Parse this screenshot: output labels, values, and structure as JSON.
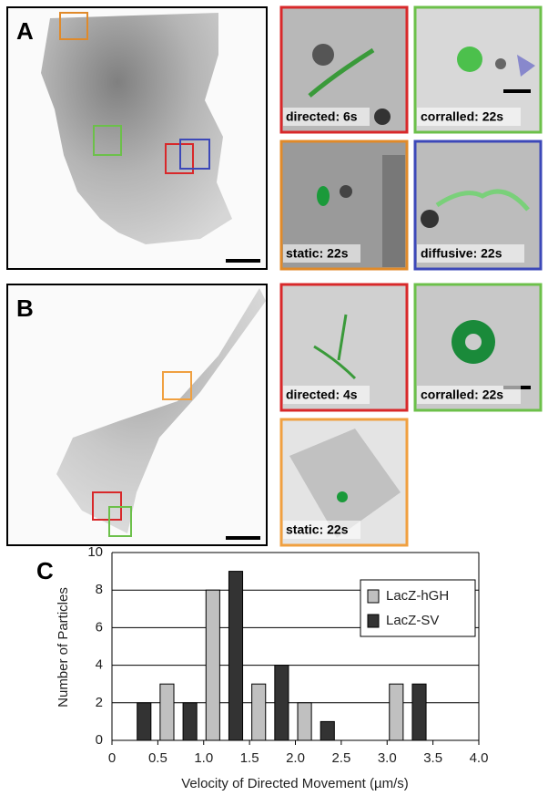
{
  "panels": [
    {
      "label": "A",
      "insets": [
        "directed: 6s",
        "corralled: 22s",
        "static: 22s",
        "diffusive: 22s"
      ]
    },
    {
      "label": "B",
      "insets": [
        "directed: 4s",
        "corralled: 22s",
        "static: 22s"
      ]
    },
    {
      "label": "C"
    }
  ],
  "chart_data": {
    "type": "bar",
    "x_label": "Velocity of Directed Movement (µm/s)",
    "y_label": "Number of Particles",
    "series": [
      {
        "name": "LacZ-hGH",
        "color": "#c0c0c0",
        "x": [
          0.6,
          1.1,
          1.6,
          2.1,
          3.1
        ],
        "values": [
          3,
          8,
          3,
          2,
          3
        ]
      },
      {
        "name": "LacZ-SV",
        "color": "#333333",
        "x": [
          0.35,
          0.85,
          1.35,
          1.85,
          2.35,
          3.35
        ],
        "values": [
          2,
          2,
          9,
          4,
          1,
          3
        ]
      }
    ],
    "xlim": [
      0,
      4
    ],
    "ylim": [
      0,
      10
    ],
    "xticks": [
      0,
      0.5,
      {
        "value": 1,
        "label": "1.0"
      },
      1.5,
      {
        "value": 2,
        "label": "2.0"
      },
      2.5,
      {
        "value": 3,
        "label": "3.0"
      },
      3.5,
      {
        "value": 4,
        "label": "4.0"
      }
    ],
    "yticks": [
      0,
      2,
      4,
      6,
      8,
      10
    ],
    "grid": true,
    "legend": "upper right"
  }
}
